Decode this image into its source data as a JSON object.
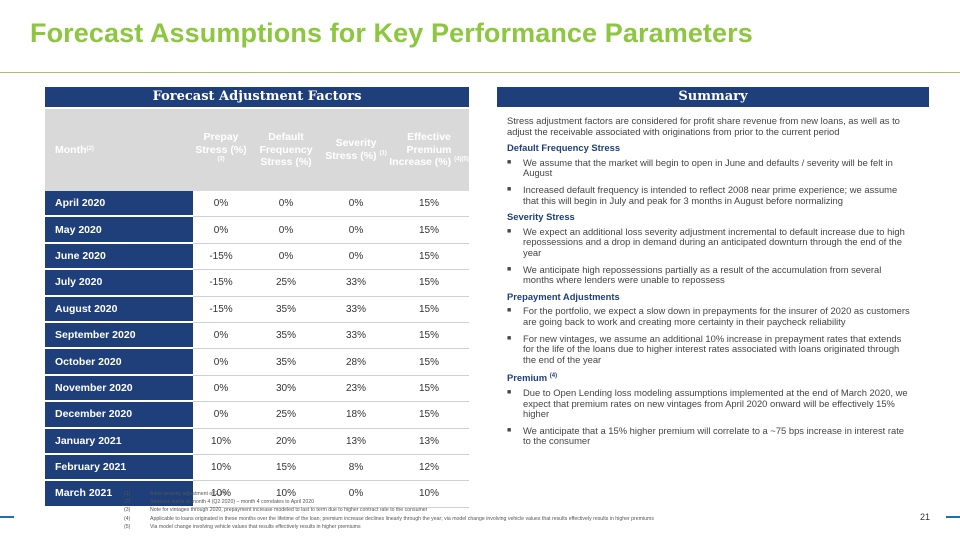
{
  "title": "Forecast Assumptions for Key Performance Parameters",
  "factors": {
    "band": "Forecast Adjustment Factors",
    "headers": {
      "month": "Month",
      "month_sup": "(2)",
      "prepay": "Prepay Stress (%)",
      "prepay_sup": "(3)",
      "default": "Default Frequency Stress (%)",
      "severity": "Severity Stress (%)",
      "severity_sup": "(1)",
      "premium": "Effective Premium Increase (%)",
      "premium_sup": "(4)(5)"
    },
    "rows": [
      {
        "month": "April 2020",
        "prepay": "0%",
        "default": "0%",
        "severity": "0%",
        "premium": "15%"
      },
      {
        "month": "May 2020",
        "prepay": "0%",
        "default": "0%",
        "severity": "0%",
        "premium": "15%"
      },
      {
        "month": "June 2020",
        "prepay": "-15%",
        "default": "0%",
        "severity": "0%",
        "premium": "15%"
      },
      {
        "month": "July 2020",
        "prepay": "-15%",
        "default": "25%",
        "severity": "33%",
        "premium": "15%"
      },
      {
        "month": "August 2020",
        "prepay": "-15%",
        "default": "35%",
        "severity": "33%",
        "premium": "15%"
      },
      {
        "month": "September 2020",
        "prepay": "0%",
        "default": "35%",
        "severity": "33%",
        "premium": "15%"
      },
      {
        "month": "October 2020",
        "prepay": "0%",
        "default": "35%",
        "severity": "28%",
        "premium": "15%"
      },
      {
        "month": "November 2020",
        "prepay": "0%",
        "default": "30%",
        "severity": "23%",
        "premium": "15%"
      },
      {
        "month": "December 2020",
        "prepay": "0%",
        "default": "25%",
        "severity": "18%",
        "premium": "15%"
      },
      {
        "month": "January 2021",
        "prepay": "10%",
        "default": "20%",
        "severity": "13%",
        "premium": "13%"
      },
      {
        "month": "February 2021",
        "prepay": "10%",
        "default": "15%",
        "severity": "8%",
        "premium": "12%"
      },
      {
        "month": "March 2021",
        "prepay": "10%",
        "default": "10%",
        "severity": "0%",
        "premium": "10%"
      }
    ]
  },
  "footnotes": [
    {
      "num": "(1)",
      "text": "Base severity adjustment of 2.3%"
    },
    {
      "num": "(2)",
      "text": "Stresses starts at month 4 (Q2 2020) – month 4 correlates to April 2020"
    },
    {
      "num": "(3)",
      "text": "Note for vintages through 2020, prepayment increase modeled to last to term due to higher contract rate to the consumer"
    },
    {
      "num": "(4)",
      "text": "Applicable to loans originated in these months over the lifetime of the loan; premium increase declines linearly through the year; via model change involving vehicle values that results effectively results in higher premiums"
    },
    {
      "num": "(5)",
      "text": "Via model change involving vehicle values that results effectively results in higher premiums"
    }
  ],
  "summary": {
    "band": "Summary",
    "intro": "Stress adjustment factors are considered for profit share revenue from new loans, as well as to adjust the receivable associated with originations from prior to the current period",
    "sections": [
      {
        "heading": "Default Frequency Stress",
        "heading_sup": "",
        "bullets": [
          "We assume that the market will begin to open in June and defaults / severity will be felt in August",
          "Increased default frequency is intended to reflect 2008 near prime experience; we assume that this will begin in July and peak for 3 months in August before normalizing"
        ]
      },
      {
        "heading": "Severity Stress",
        "heading_sup": "",
        "bullets": [
          "We expect an additional loss severity adjustment incremental to default increase due to high repossessions and a drop in demand during an anticipated downturn through the end of the year",
          "We anticipate high repossessions partially as a result of the accumulation from several months where lenders were unable to repossess"
        ]
      },
      {
        "heading": "Prepayment Adjustments",
        "heading_sup": "",
        "bullets": [
          "For the portfolio, we expect a slow down in prepayments for the insurer of 2020 as customers are going back to work and creating more certainty in their paycheck reliability",
          "For new vintages, we assume an additional 10% increase in prepayment rates that extends for the life of the loans due to higher interest rates associated with loans originated through the end of the year"
        ]
      },
      {
        "heading": "Premium",
        "heading_sup": "(4)",
        "bullets": [
          "Due to Open Lending loss modeling assumptions implemented at the end of March 2020, we expect that premium rates on new vintages from April 2020 onward will be effectively 15% higher",
          "We anticipate that a 15% higher premium will correlate to a ~75 bps increase in interest rate to the consumer"
        ]
      }
    ]
  },
  "page_number": "21",
  "colors": {
    "title_green": "#8dc63f",
    "navy": "#1f3f7a",
    "header_gray": "#d9d9d9",
    "accent_blue": "#1f6fb8"
  }
}
